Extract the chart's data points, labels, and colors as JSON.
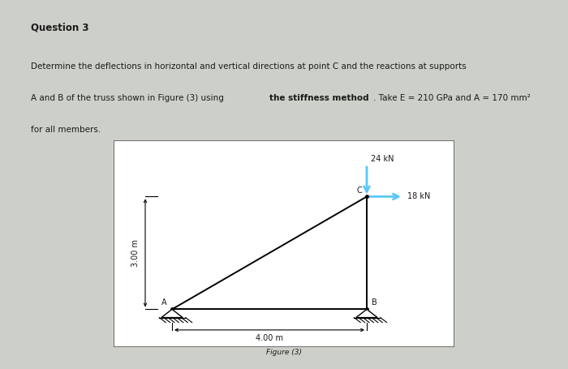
{
  "page_bg": "#cdd0c8",
  "box_bg": "#ffffff",
  "box_edge_color": "#555555",
  "title": "Question 3",
  "line1": "Determine the deflections in horizontal and vertical directions at point C and the reactions at supports",
  "line2a": "A and B of the truss shown in Figure (3) using ",
  "line2b": "the stiffness method",
  "line2c": ". Take E = 210 GPa and A = 170 mm²",
  "line3": "for all members.",
  "figure_label": "Figure (3)",
  "nodes": {
    "A": [
      0.0,
      0.0
    ],
    "B": [
      4.0,
      0.0
    ],
    "C": [
      4.0,
      3.0
    ]
  },
  "members": [
    [
      "A",
      "B"
    ],
    [
      "B",
      "C"
    ],
    [
      "A",
      "C"
    ]
  ],
  "dim_h": "4.00 m",
  "dim_v": "3.00 m",
  "load_v": "24 kN",
  "load_h": "18 kN",
  "arrow_v_color": "#5bc8f5",
  "arrow_h_color": "#5bc8f5",
  "text_color": "#1a1a1a",
  "font_size_title": 8.5,
  "font_size_body": 7.5,
  "font_size_diagram": 7.0
}
